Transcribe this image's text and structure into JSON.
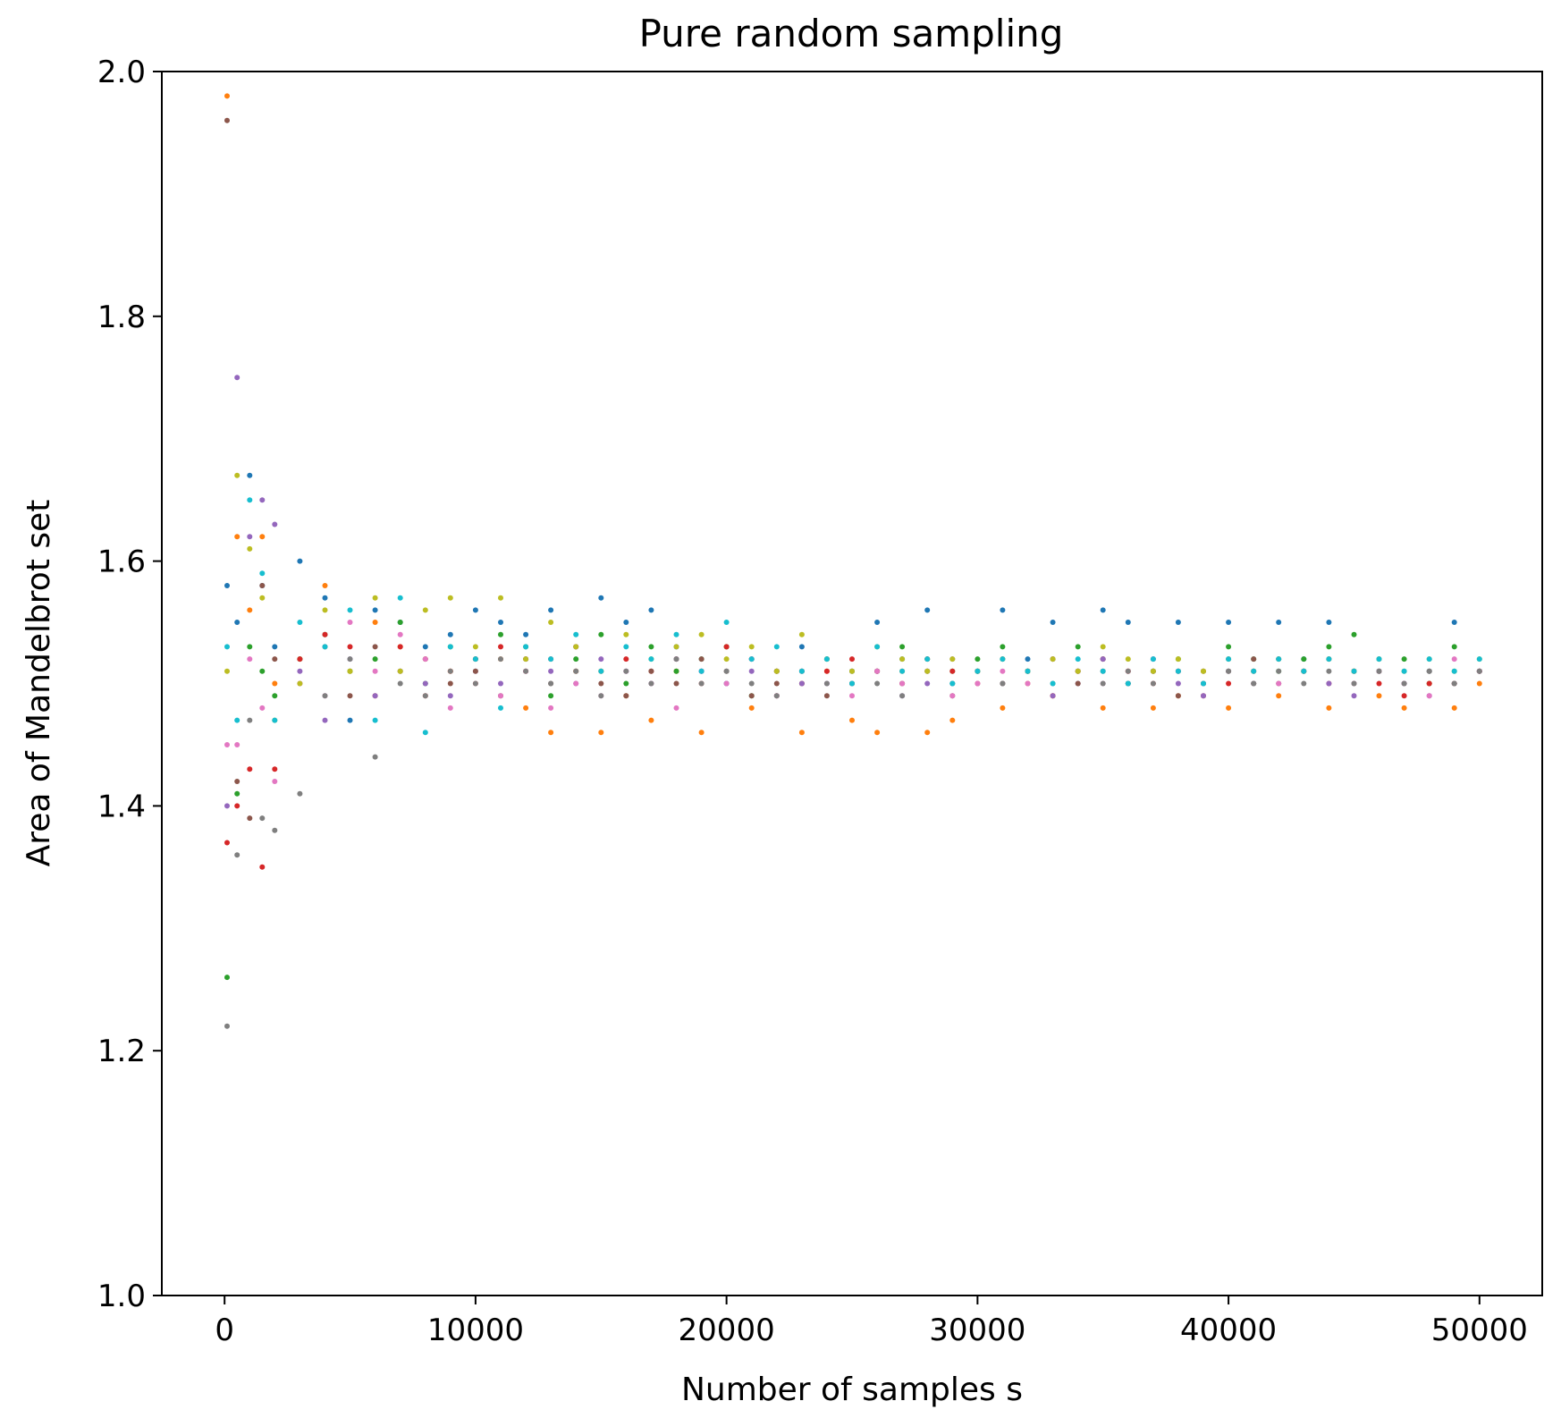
{
  "chart_data": {
    "type": "scatter",
    "title": "Pure random sampling",
    "xlabel": "Number of samples s",
    "ylabel": "Area of Mandelbrot set",
    "xlim": [
      -2500,
      52500
    ],
    "ylim": [
      1.0,
      2.0
    ],
    "xticks": [
      0,
      10000,
      20000,
      30000,
      40000,
      50000
    ],
    "yticks": [
      1.0,
      1.2,
      1.4,
      1.6,
      1.8,
      2.0
    ],
    "xtick_labels": [
      "0",
      "10000",
      "20000",
      "30000",
      "40000",
      "50000"
    ],
    "ytick_labels": [
      "1.0",
      "1.2",
      "1.4",
      "1.6",
      "1.8",
      "2.0"
    ],
    "grid": false,
    "legend": "none",
    "x": [
      100,
      500,
      1000,
      1500,
      2000,
      3000,
      4000,
      5000,
      6000,
      7000,
      8000,
      9000,
      10000,
      11000,
      12000,
      13000,
      14000,
      15000,
      16000,
      17000,
      18000,
      19000,
      20000,
      21000,
      22000,
      23000,
      24000,
      25000,
      26000,
      27000,
      28000,
      29000,
      30000,
      31000,
      32000,
      33000,
      34000,
      35000,
      36000,
      37000,
      38000,
      39000,
      40000,
      41000,
      42000,
      43000,
      44000,
      45000,
      46000,
      47000,
      48000,
      49000,
      50000
    ],
    "series": [
      {
        "color": "#1f77b4",
        "values": [
          1.58,
          1.55,
          1.67,
          1.58,
          1.53,
          1.6,
          1.57,
          1.47,
          1.56,
          1.55,
          1.53,
          1.54,
          1.56,
          1.55,
          1.54,
          1.56,
          1.53,
          1.57,
          1.55,
          1.56,
          1.53,
          1.51,
          1.5,
          1.52,
          1.51,
          1.53,
          1.5,
          1.51,
          1.55,
          1.52,
          1.56,
          1.5,
          1.51,
          1.56,
          1.52,
          1.55,
          1.51,
          1.56,
          1.55,
          1.52,
          1.55,
          1.51,
          1.55,
          1.5,
          1.55,
          1.52,
          1.55,
          1.51,
          1.52,
          1.5,
          1.51,
          1.55,
          1.51
        ]
      },
      {
        "color": "#ff7f0e",
        "values": [
          1.98,
          1.62,
          1.56,
          1.62,
          1.5,
          1.52,
          1.58,
          1.51,
          1.55,
          1.53,
          1.52,
          1.51,
          1.5,
          1.52,
          1.48,
          1.46,
          1.51,
          1.46,
          1.49,
          1.47,
          1.51,
          1.46,
          1.53,
          1.48,
          1.49,
          1.46,
          1.51,
          1.47,
          1.46,
          1.51,
          1.46,
          1.47,
          1.51,
          1.48,
          1.5,
          1.49,
          1.51,
          1.48,
          1.51,
          1.48,
          1.49,
          1.51,
          1.48,
          1.5,
          1.49,
          1.51,
          1.48,
          1.51,
          1.49,
          1.48,
          1.5,
          1.48,
          1.5
        ]
      },
      {
        "color": "#2ca02c",
        "values": [
          1.26,
          1.41,
          1.53,
          1.51,
          1.49,
          1.52,
          1.54,
          1.51,
          1.52,
          1.55,
          1.5,
          1.53,
          1.52,
          1.54,
          1.53,
          1.49,
          1.52,
          1.54,
          1.5,
          1.53,
          1.51,
          1.52,
          1.53,
          1.49,
          1.51,
          1.5,
          1.52,
          1.5,
          1.51,
          1.53,
          1.52,
          1.51,
          1.52,
          1.53,
          1.51,
          1.52,
          1.53,
          1.52,
          1.5,
          1.51,
          1.52,
          1.5,
          1.53,
          1.52,
          1.51,
          1.52,
          1.53,
          1.54,
          1.51,
          1.52,
          1.5,
          1.53,
          1.51
        ]
      },
      {
        "color": "#d62728",
        "values": [
          1.37,
          1.4,
          1.43,
          1.35,
          1.43,
          1.52,
          1.54,
          1.53,
          1.49,
          1.53,
          1.49,
          1.51,
          1.52,
          1.53,
          1.51,
          1.52,
          1.53,
          1.51,
          1.52,
          1.51,
          1.52,
          1.5,
          1.53,
          1.52,
          1.51,
          1.5,
          1.51,
          1.52,
          1.51,
          1.5,
          1.52,
          1.51,
          1.5,
          1.52,
          1.51,
          1.49,
          1.51,
          1.52,
          1.51,
          1.5,
          1.51,
          1.49,
          1.5,
          1.51,
          1.52,
          1.51,
          1.5,
          1.51,
          1.5,
          1.49,
          1.5,
          1.5,
          1.51
        ]
      },
      {
        "color": "#9467bd",
        "values": [
          1.4,
          1.75,
          1.62,
          1.65,
          1.63,
          1.51,
          1.47,
          1.52,
          1.49,
          1.51,
          1.5,
          1.49,
          1.51,
          1.5,
          1.52,
          1.51,
          1.5,
          1.52,
          1.51,
          1.5,
          1.52,
          1.51,
          1.5,
          1.51,
          1.49,
          1.5,
          1.52,
          1.5,
          1.51,
          1.49,
          1.5,
          1.52,
          1.51,
          1.5,
          1.51,
          1.49,
          1.5,
          1.52,
          1.5,
          1.51,
          1.5,
          1.49,
          1.51,
          1.5,
          1.52,
          1.51,
          1.5,
          1.49,
          1.51,
          1.5,
          1.49,
          1.5,
          1.51
        ]
      },
      {
        "color": "#8c564b",
        "values": [
          1.96,
          1.42,
          1.39,
          1.58,
          1.52,
          1.5,
          1.53,
          1.49,
          1.53,
          1.51,
          1.52,
          1.5,
          1.51,
          1.49,
          1.52,
          1.5,
          1.51,
          1.5,
          1.49,
          1.51,
          1.5,
          1.52,
          1.51,
          1.49,
          1.5,
          1.51,
          1.49,
          1.5,
          1.51,
          1.5,
          1.51,
          1.49,
          1.51,
          1.5,
          1.51,
          1.52,
          1.5,
          1.51,
          1.5,
          1.51,
          1.49,
          1.5,
          1.51,
          1.52,
          1.5,
          1.51,
          1.52,
          1.5,
          1.51,
          1.5,
          1.51,
          1.5,
          1.51
        ]
      },
      {
        "color": "#e377c2",
        "values": [
          1.45,
          1.45,
          1.52,
          1.48,
          1.42,
          1.5,
          1.49,
          1.55,
          1.51,
          1.54,
          1.52,
          1.48,
          1.5,
          1.49,
          1.51,
          1.48,
          1.5,
          1.49,
          1.51,
          1.5,
          1.48,
          1.51,
          1.5,
          1.52,
          1.49,
          1.51,
          1.5,
          1.49,
          1.51,
          1.5,
          1.51,
          1.49,
          1.5,
          1.51,
          1.5,
          1.52,
          1.51,
          1.5,
          1.51,
          1.52,
          1.51,
          1.5,
          1.52,
          1.51,
          1.5,
          1.51,
          1.52,
          1.5,
          1.51,
          1.5,
          1.49,
          1.52,
          1.51
        ]
      },
      {
        "color": "#7f7f7f",
        "values": [
          1.22,
          1.36,
          1.47,
          1.39,
          1.38,
          1.41,
          1.49,
          1.52,
          1.44,
          1.5,
          1.49,
          1.51,
          1.5,
          1.52,
          1.51,
          1.5,
          1.51,
          1.49,
          1.51,
          1.5,
          1.52,
          1.5,
          1.51,
          1.5,
          1.49,
          1.51,
          1.5,
          1.51,
          1.5,
          1.49,
          1.51,
          1.5,
          1.51,
          1.5,
          1.51,
          1.5,
          1.51,
          1.5,
          1.51,
          1.5,
          1.51,
          1.5,
          1.51,
          1.5,
          1.51,
          1.5,
          1.51,
          1.5,
          1.51,
          1.5,
          1.51,
          1.5,
          1.51
        ]
      },
      {
        "color": "#bcbd22",
        "values": [
          1.51,
          1.67,
          1.61,
          1.57,
          1.47,
          1.5,
          1.56,
          1.51,
          1.57,
          1.51,
          1.56,
          1.57,
          1.53,
          1.57,
          1.52,
          1.55,
          1.53,
          1.51,
          1.54,
          1.52,
          1.53,
          1.54,
          1.52,
          1.53,
          1.51,
          1.54,
          1.52,
          1.51,
          1.53,
          1.52,
          1.51,
          1.52,
          1.51,
          1.52,
          1.51,
          1.52,
          1.51,
          1.53,
          1.52,
          1.51,
          1.52,
          1.51,
          1.52,
          1.51,
          1.52,
          1.51,
          1.52,
          1.51,
          1.52,
          1.51,
          1.52,
          1.51,
          1.52
        ]
      },
      {
        "color": "#17becf",
        "values": [
          1.53,
          1.47,
          1.65,
          1.59,
          1.47,
          1.55,
          1.53,
          1.56,
          1.47,
          1.57,
          1.46,
          1.53,
          1.52,
          1.48,
          1.53,
          1.52,
          1.54,
          1.51,
          1.53,
          1.52,
          1.54,
          1.51,
          1.55,
          1.52,
          1.53,
          1.51,
          1.52,
          1.5,
          1.53,
          1.51,
          1.52,
          1.5,
          1.51,
          1.52,
          1.51,
          1.5,
          1.52,
          1.51,
          1.5,
          1.52,
          1.51,
          1.5,
          1.52,
          1.51,
          1.52,
          1.51,
          1.52,
          1.51,
          1.52,
          1.51,
          1.52,
          1.51,
          1.52
        ]
      }
    ]
  }
}
